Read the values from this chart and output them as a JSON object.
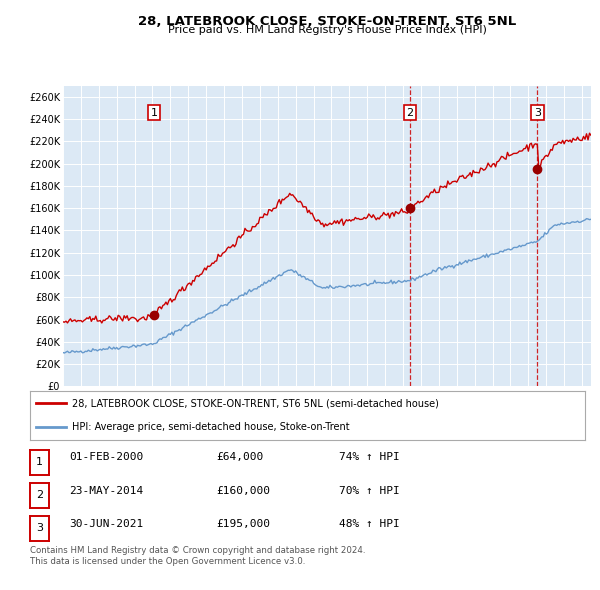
{
  "title": "28, LATEBROOK CLOSE, STOKE-ON-TRENT, ST6 5NL",
  "subtitle": "Price paid vs. HM Land Registry's House Price Index (HPI)",
  "background_color": "#ffffff",
  "plot_bg_color": "#dce9f5",
  "red_line_color": "#cc0000",
  "blue_line_color": "#6699cc",
  "dashed_vline_color": "#cc0000",
  "sale_marker_color": "#990000",
  "sales": [
    {
      "date_num": 2000.08,
      "price": 64000,
      "label": "1"
    },
    {
      "date_num": 2014.39,
      "price": 160000,
      "label": "2"
    },
    {
      "date_num": 2021.5,
      "price": 195000,
      "label": "3"
    }
  ],
  "sale_dates_text": [
    "01-FEB-2000",
    "23-MAY-2014",
    "30-JUN-2021"
  ],
  "sale_prices_text": [
    "£64,000",
    "£160,000",
    "£195,000"
  ],
  "sale_pcts_text": [
    "74% ↑ HPI",
    "70% ↑ HPI",
    "48% ↑ HPI"
  ],
  "legend_red": "28, LATEBROOK CLOSE, STOKE-ON-TRENT, ST6 5NL (semi-detached house)",
  "legend_blue": "HPI: Average price, semi-detached house, Stoke-on-Trent",
  "footer": "Contains HM Land Registry data © Crown copyright and database right 2024.\nThis data is licensed under the Open Government Licence v3.0.",
  "ylim": [
    0,
    270000
  ],
  "xlim_start": 1995.0,
  "xlim_end": 2024.5,
  "ytick_step": 20000
}
